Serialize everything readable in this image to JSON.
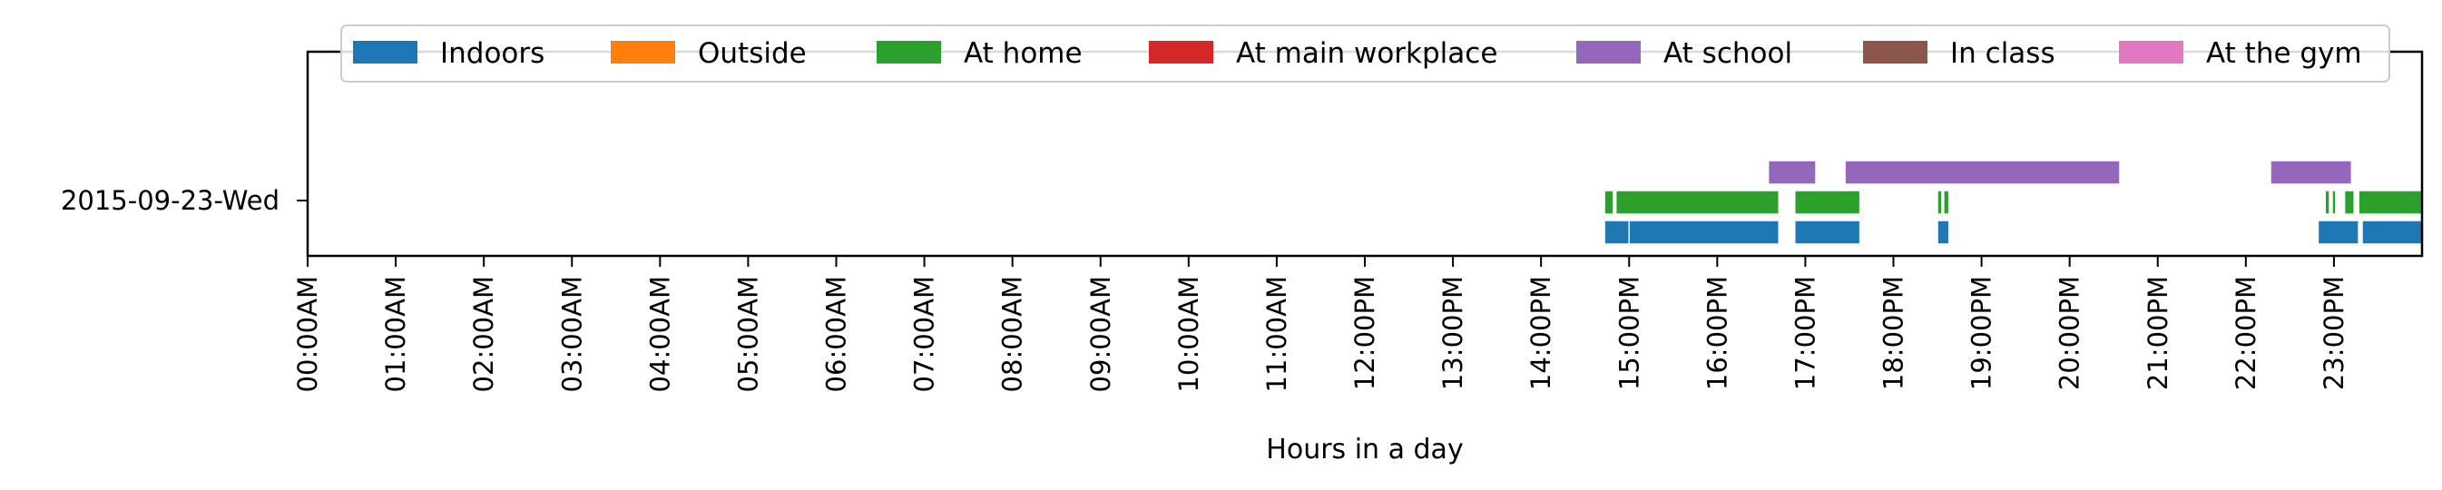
{
  "chart_data": {
    "type": "timeline",
    "xlabel": "Hours in a day",
    "x_tick_labels": [
      "00:00AM",
      "01:00AM",
      "02:00AM",
      "03:00AM",
      "04:00AM",
      "05:00AM",
      "06:00AM",
      "07:00AM",
      "08:00AM",
      "09:00AM",
      "10:00AM",
      "11:00AM",
      "12:00PM",
      "13:00PM",
      "14:00PM",
      "15:00PM",
      "16:00PM",
      "17:00PM",
      "18:00PM",
      "19:00PM",
      "20:00PM",
      "21:00PM",
      "22:00PM",
      "23:00PM"
    ],
    "xlim_hours": [
      0,
      24
    ],
    "rows": [
      "2015-09-23-Wed"
    ],
    "legend_placement": "top-center",
    "series": [
      {
        "name": "Indoors",
        "color": "#1f77b4",
        "segments": [
          [
            14.72,
            15.0
          ],
          [
            15.0,
            16.7
          ],
          [
            16.88,
            17.62
          ],
          [
            18.5,
            18.63
          ],
          [
            22.82,
            23.28
          ],
          [
            23.32,
            24.0
          ]
        ]
      },
      {
        "name": "Outside",
        "color": "#ff7f0e",
        "segments": []
      },
      {
        "name": "At home",
        "color": "#2ca02c",
        "segments": [
          [
            14.72,
            14.82
          ],
          [
            14.85,
            16.7
          ],
          [
            16.88,
            17.62
          ],
          [
            18.5,
            18.55
          ],
          [
            18.57,
            18.63
          ],
          [
            22.9,
            22.95
          ],
          [
            22.98,
            23.02
          ],
          [
            23.12,
            23.23
          ],
          [
            23.28,
            24.0
          ]
        ]
      },
      {
        "name": "At main workplace",
        "color": "#d62728",
        "segments": []
      },
      {
        "name": "At school",
        "color": "#9467bd",
        "segments": [
          [
            16.58,
            17.12
          ],
          [
            17.45,
            20.57
          ],
          [
            22.28,
            23.2
          ]
        ]
      },
      {
        "name": "In class",
        "color": "#8c564b",
        "segments": []
      },
      {
        "name": "At the gym",
        "color": "#e377c2",
        "segments": []
      }
    ]
  }
}
